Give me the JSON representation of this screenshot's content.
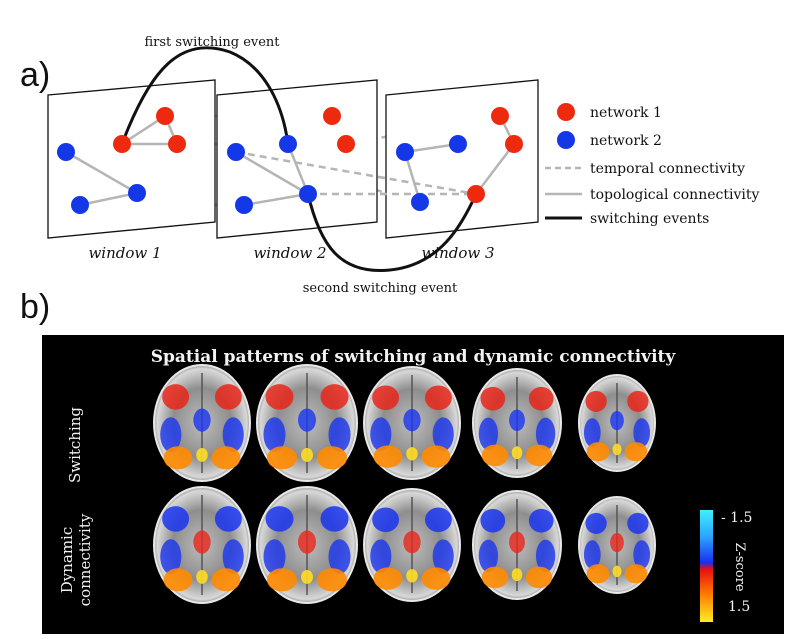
{
  "panel_a": {
    "label": "a)",
    "windows": [
      "window 1",
      "window 2",
      "window 3"
    ],
    "annotations": {
      "first_switch": "first switching event",
      "second_switch": "second switching event"
    },
    "legend": [
      {
        "label": "network 1",
        "kind": "node",
        "color": "#ee2a0e"
      },
      {
        "label": "network 2",
        "kind": "node",
        "color": "#1438e8"
      },
      {
        "label": "temporal connectivity",
        "kind": "dashed",
        "color": "#b5b5b5"
      },
      {
        "label": "topological connectivity",
        "kind": "solid",
        "color": "#b5b5b5"
      },
      {
        "label": "switching events",
        "kind": "thick",
        "color": "#111111"
      }
    ]
  },
  "panel_b": {
    "label": "b)",
    "title": "Spatial patterns of switching and dynamic connectivity",
    "rows": [
      "Switching",
      "Dynamic connectivity"
    ],
    "row_lines": [
      [
        "Switching"
      ],
      [
        "Dynamic",
        "connectivity"
      ]
    ],
    "colorbar": {
      "top": "- 1.5",
      "bottom": "1.5",
      "label": "Z-score"
    }
  },
  "colors": {
    "network1": "#ee2a0e",
    "network2": "#1438e8",
    "grey_line": "#b5b5b5",
    "switch": "#111111"
  }
}
